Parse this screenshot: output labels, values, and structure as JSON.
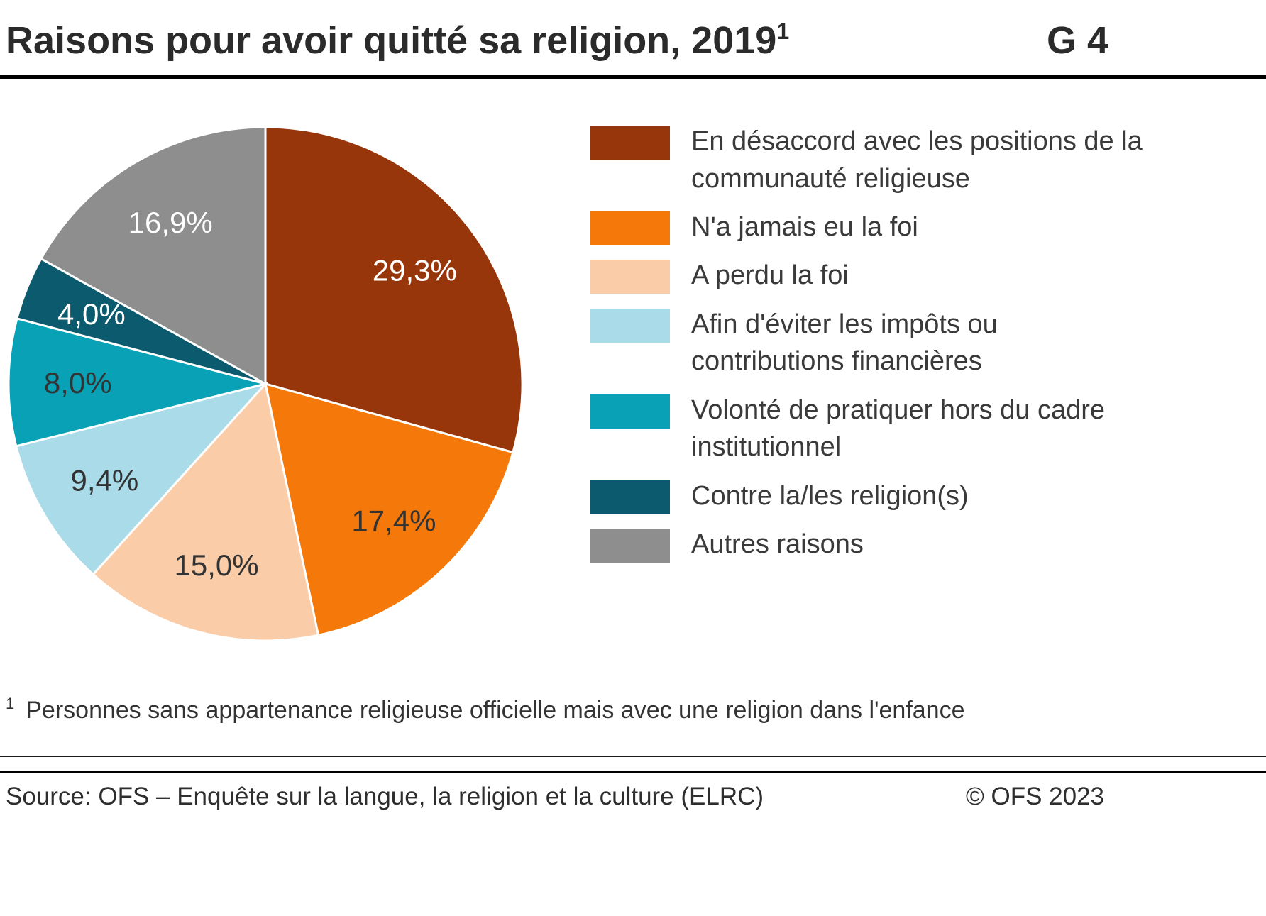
{
  "header": {
    "title": "Raisons pour avoir quitté sa religion, 2019",
    "title_superscript": "1",
    "graph_number": "G 4"
  },
  "chart_data": {
    "type": "pie",
    "title": "Raisons pour avoir quitté sa religion, 2019",
    "unit": "%",
    "start_angle_deg": 0,
    "direction": "clockwise",
    "legend_position": "right",
    "slices": [
      {
        "label": "En désaccord avec les positions de la communauté religieuse",
        "value": 29.3,
        "display": "29,3%",
        "color": "#96360A",
        "text_color": "#ffffff"
      },
      {
        "label": "N'a jamais eu la foi",
        "value": 17.4,
        "display": "17,4%",
        "color": "#F5790A",
        "text_color": "#333333"
      },
      {
        "label": "A perdu la foi",
        "value": 15.0,
        "display": "15,0%",
        "color": "#FACCA8",
        "text_color": "#333333"
      },
      {
        "label": "Afin d'éviter les impôts ou contributions financières",
        "value": 9.4,
        "display": "9,4%",
        "color": "#A9DBE8",
        "text_color": "#333333"
      },
      {
        "label": "Volonté de pratiquer hors du cadre institutionnel",
        "value": 8.0,
        "display": "8,0%",
        "color": "#08A1B6",
        "text_color": "#333333"
      },
      {
        "label": "Contre la/les religion(s)",
        "value": 4.0,
        "display": "4,0%",
        "color": "#0C5A6E",
        "text_color": "#ffffff"
      },
      {
        "label": "Autres raisons",
        "value": 16.9,
        "display": "16,9%",
        "color": "#8E8E8E",
        "text_color": "#ffffff"
      }
    ]
  },
  "footnote": {
    "marker": "1",
    "text": "Personnes sans appartenance religieuse officielle mais avec une religion dans l'enfance"
  },
  "footer": {
    "source": "Source: OFS – Enquête sur la langue, la religion et la culture (ELRC)",
    "copyright": "© OFS 2023"
  }
}
